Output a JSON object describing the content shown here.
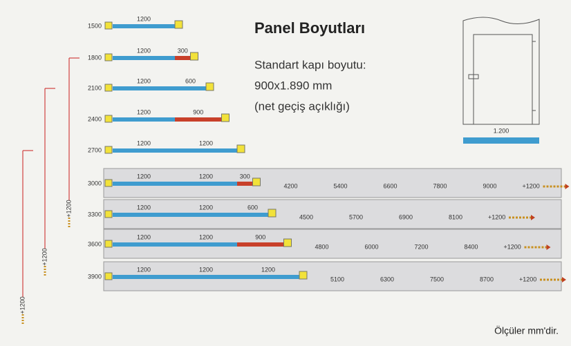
{
  "title": "Panel Boyutları",
  "door_info": [
    "Standart kapı boyutu:",
    "900x1.890 mm",
    "(net geçiş açıklığı)"
  ],
  "door_width": "1.200",
  "note": "Ölçüler mm'dir.",
  "rows": [
    {
      "height": "1500",
      "segments": [
        1200
      ]
    },
    {
      "height": "1800",
      "segments": [
        1200,
        300
      ]
    },
    {
      "height": "2100",
      "segments": [
        1200,
        600
      ]
    },
    {
      "height": "2400",
      "segments": [
        1200,
        900
      ]
    },
    {
      "height": "2700",
      "segments": [
        1200,
        1200
      ]
    },
    {
      "height": "3000",
      "segments": [
        1200,
        1200,
        300
      ],
      "extensions": [
        "4200",
        "5400",
        "6600",
        "7800",
        "9000"
      ],
      "plus": "+1200"
    },
    {
      "height": "3300",
      "segments": [
        1200,
        1200,
        600
      ],
      "extensions": [
        "4500",
        "5700",
        "6900",
        "8100"
      ],
      "plus": "+1200"
    },
    {
      "height": "3600",
      "segments": [
        1200,
        1200,
        900
      ],
      "extensions": [
        "4800",
        "6000",
        "7200",
        "8400"
      ],
      "plus": "+1200"
    },
    {
      "height": "3900",
      "segments": [
        1200,
        1200,
        1200
      ],
      "extensions": [
        "5100",
        "6300",
        "7500",
        "8700"
      ],
      "plus": "+1200"
    }
  ],
  "vertical_labels": [
    "+1200",
    "+1200",
    "+1200"
  ]
}
